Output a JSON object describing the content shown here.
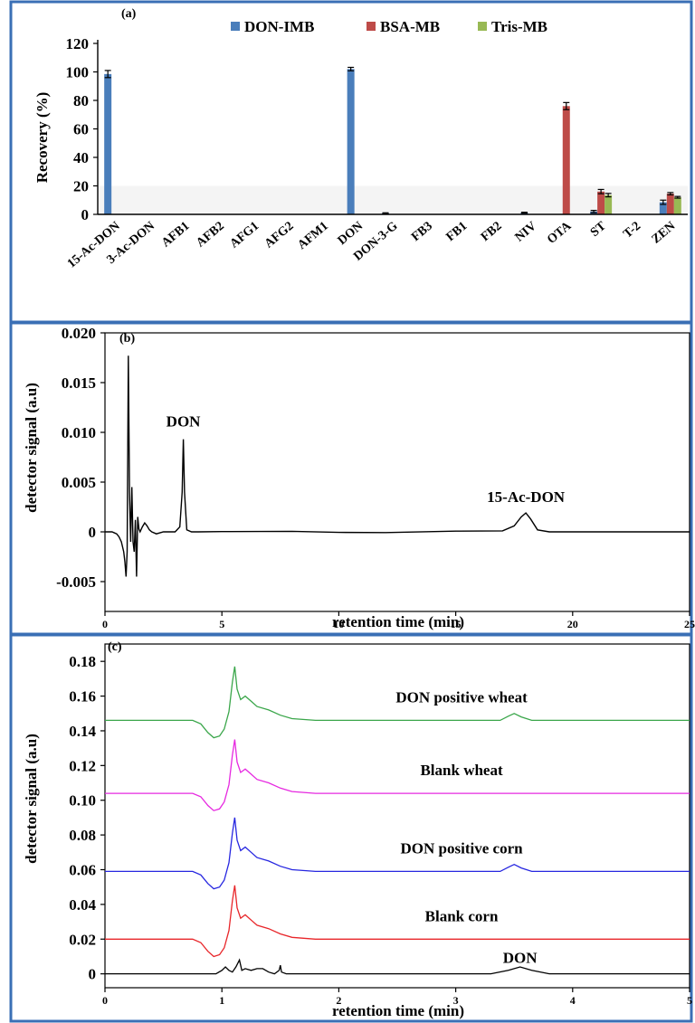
{
  "chart_data": [
    {
      "panel": "(a)",
      "type": "bar",
      "ylabel": "Recovery (%)",
      "ylim": [
        0,
        120
      ],
      "yticks": [
        "0",
        "20",
        "40",
        "60",
        "80",
        "100",
        "120"
      ],
      "categories": [
        "15-Ac-DON",
        "3-Ac-DON",
        "AFB1",
        "AFB2",
        "AFG1",
        "AFG2",
        "AFM1",
        "DON",
        "DON-3-G",
        "FB3",
        "FB1",
        "FB2",
        "NIV",
        "OTA",
        "ST",
        "T-2",
        "ZEN"
      ],
      "legend_position": "top-center",
      "series": [
        {
          "name": "DON-IMB",
          "color": "#4a7ebb",
          "values": [
            98.5,
            0,
            0,
            0,
            0,
            0,
            0,
            102,
            0.8,
            0,
            0,
            0,
            1.2,
            0,
            2,
            0,
            8.5
          ],
          "errors": [
            2.5,
            0,
            0,
            0,
            0,
            0,
            0,
            1.2,
            0.3,
            0,
            0,
            0,
            0.3,
            0,
            0.8,
            0,
            1.5
          ]
        },
        {
          "name": "BSA-MB",
          "color": "#be4b48",
          "values": [
            0,
            0,
            0,
            0,
            0,
            0,
            0,
            0,
            0,
            0,
            0,
            0,
            0,
            76,
            16,
            0,
            14.5
          ],
          "errors": [
            0,
            0,
            0,
            0,
            0,
            0,
            0,
            0,
            0,
            0,
            0,
            0,
            0,
            2.5,
            1.5,
            0,
            0.8
          ]
        },
        {
          "name": "Tris-MB",
          "color": "#98b954",
          "values": [
            0,
            0,
            0,
            0,
            0,
            0,
            0,
            0,
            0,
            0,
            0,
            0,
            0,
            0,
            13.5,
            0,
            12
          ],
          "errors": [
            0,
            0,
            0,
            0,
            0,
            0,
            0,
            0,
            0,
            0,
            0,
            0,
            0,
            0,
            1.2,
            0,
            0.6
          ]
        }
      ]
    },
    {
      "panel": "(b)",
      "type": "line",
      "xlabel": "retention time (min)",
      "ylabel": "detector signal (a.u)",
      "xlim": [
        0,
        25
      ],
      "ylim": [
        -0.008,
        0.02
      ],
      "xticks": [
        "0",
        "5",
        "10",
        "15",
        "20",
        "25"
      ],
      "yticks": [
        "0.020",
        "0.015",
        "0.010",
        "0.005",
        "0",
        "-0.005"
      ],
      "annotations": [
        {
          "text": "DON",
          "x": 3.35,
          "y": 0.0093
        },
        {
          "text": "15-Ac-DON",
          "x": 18.0,
          "y": 0.0019
        }
      ],
      "series": [
        {
          "color": "#000000",
          "x": [
            0,
            0.3,
            0.5,
            0.6,
            0.7,
            0.8,
            0.85,
            0.9,
            0.95,
            1.0,
            1.05,
            1.1,
            1.15,
            1.2,
            1.25,
            1.3,
            1.35,
            1.4,
            1.45,
            1.5,
            1.6,
            1.7,
            1.8,
            1.9,
            2.0,
            2.2,
            2.5,
            3.0,
            3.2,
            3.3,
            3.35,
            3.4,
            3.5,
            3.7,
            4.0,
            5,
            8,
            10,
            12,
            15,
            17.0,
            17.5,
            17.8,
            18.0,
            18.2,
            18.5,
            19.0,
            20,
            22,
            25
          ],
          "y": [
            0,
            0,
            -0.0002,
            -0.0005,
            -0.001,
            -0.002,
            -0.003,
            -0.0045,
            -0.002,
            0.0177,
            0.004,
            -0.001,
            0.0045,
            -0.001,
            -0.002,
            0.0012,
            -0.0045,
            0.0015,
            0.0003,
            0,
            0.0005,
            0.0009,
            0.0006,
            0.0002,
            0,
            -0.0002,
            0,
            0,
            0.0005,
            0.004,
            0.0093,
            0.004,
            0.0002,
            0,
            0,
            0,
            0,
            0,
            0,
            0,
            0.0001,
            0.0006,
            0.0015,
            0.0019,
            0.0013,
            0.0002,
            0,
            0,
            0,
            0
          ]
        }
      ]
    },
    {
      "panel": "(c)",
      "type": "line",
      "xlabel": "retention time (min)",
      "ylabel": "detector signal (a.u)",
      "xlim": [
        0,
        5
      ],
      "ylim": [
        -0.008,
        0.19
      ],
      "xticks": [
        "0",
        "1",
        "2",
        "3",
        "4",
        "5"
      ],
      "yticks": [
        "0",
        "0.02",
        "0.04",
        "0.06",
        "0.08",
        "0.10",
        "0.12",
        "0.14",
        "0.16",
        "0.18"
      ],
      "series": [
        {
          "name": "DON",
          "color": "#000000",
          "base": 0,
          "x": [
            0,
            0.95,
            1.0,
            1.03,
            1.06,
            1.09,
            1.12,
            1.15,
            1.17,
            1.2,
            1.25,
            1.3,
            1.35,
            1.4,
            1.45,
            1.49,
            1.5,
            1.51,
            1.55,
            2.0,
            3.3,
            3.45,
            3.55,
            3.65,
            3.8,
            5
          ],
          "y": [
            0,
            0,
            0.002,
            0.004,
            0.002,
            0.001,
            0.004,
            0.008,
            0.002,
            0.003,
            0.002,
            0.003,
            0.003,
            0.001,
            0,
            0.002,
            0.005,
            0.001,
            0,
            0,
            0,
            0.002,
            0.004,
            0.002,
            0,
            0
          ]
        },
        {
          "name": "Blank corn",
          "color": "#e8262a",
          "base": 0.02
        },
        {
          "name": "DON positive corn",
          "color": "#2626e0",
          "base": 0.059,
          "peak": 0.004
        },
        {
          "name": "Blank wheat",
          "color": "#e629e0",
          "base": 0.104
        },
        {
          "name": "DON positive wheat",
          "color": "#3aa64a",
          "base": 0.146,
          "peak": 0.004
        }
      ]
    }
  ]
}
